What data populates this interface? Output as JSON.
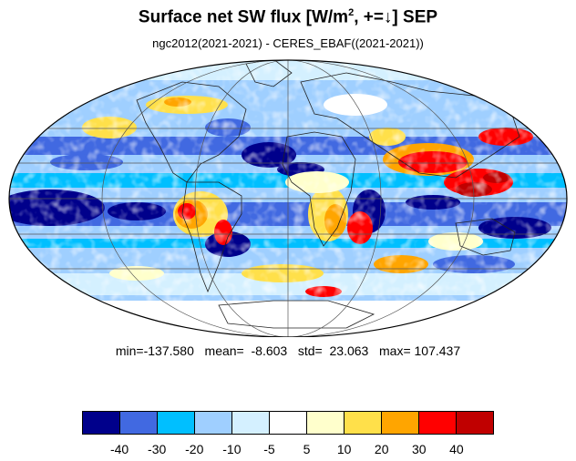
{
  "title": {
    "main": "Surface net SW flux [W/m",
    "sup": "2",
    "tail": ", +=↓]  SEP"
  },
  "subtitle": "ngc2012(2021-2021) - CERES_EBAF((2021-2021))",
  "stats": {
    "text": "min=-137.580   mean=  -8.603   std=  23.063   max= 107.437",
    "min": -137.58,
    "mean": -8.603,
    "std": 23.063,
    "max": 107.437
  },
  "projection": "Mollweide",
  "colorbar": {
    "colors": [
      "#00008b",
      "#4169e1",
      "#00bfff",
      "#9fcfff",
      "#d4f0ff",
      "#ffffff",
      "#ffffcc",
      "#ffe04a",
      "#ffa500",
      "#ff0000",
      "#c00000"
    ],
    "labels": [
      "-40",
      "-30",
      "-20",
      "-10",
      "-5",
      "5",
      "10",
      "20",
      "30",
      "40"
    ]
  }
}
